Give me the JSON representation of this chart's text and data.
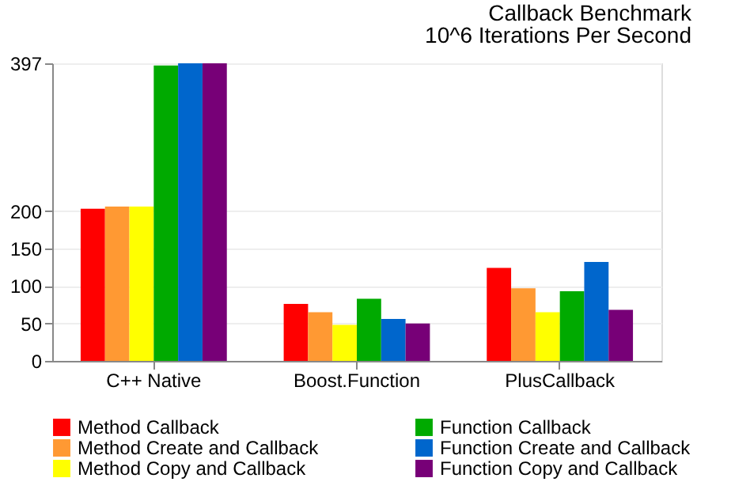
{
  "chart_data": {
    "type": "bar",
    "title": "Callback Benchmark",
    "subtitle": "10^6 Iterations Per Second",
    "categories": [
      "C++ Native",
      "Boost.Function",
      "PlusCallback"
    ],
    "series": [
      {
        "name": "Method Callback",
        "color": "#ff0000",
        "values": [
          203,
          76,
          124
        ]
      },
      {
        "name": "Method Create and Callback",
        "color": "#ff9933",
        "values": [
          206,
          65,
          97
        ]
      },
      {
        "name": "Method Copy and Callback",
        "color": "#ffff00",
        "values": [
          206,
          48,
          65
        ]
      },
      {
        "name": "Function Callback",
        "color": "#00aa00",
        "values": [
          394,
          83,
          93
        ]
      },
      {
        "name": "Function Create and Callback",
        "color": "#0066cc",
        "values": [
          397,
          56,
          132
        ]
      },
      {
        "name": "Function Copy and Callback",
        "color": "#770077",
        "values": [
          397,
          50,
          68
        ]
      }
    ],
    "ylim": [
      0,
      397
    ],
    "yticks": [
      0,
      50,
      100,
      150,
      200,
      397
    ],
    "grid": "y",
    "legend": "bottom"
  }
}
